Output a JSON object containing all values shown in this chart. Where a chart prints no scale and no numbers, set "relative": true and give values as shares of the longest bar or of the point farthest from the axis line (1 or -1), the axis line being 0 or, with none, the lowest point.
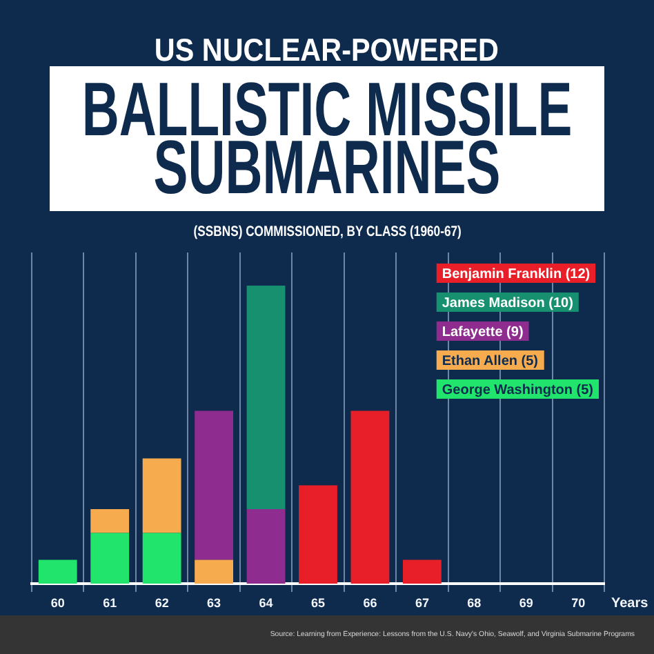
{
  "chart_data": {
    "type": "bar",
    "title": "BALLISTIC MISSILE SUBMARINES",
    "subtitle": "(SSBNS) COMMISSIONED, BY CLASS (1960-67)",
    "xlabel": "Years",
    "annotations": [
      "US NUCLEAR-POWERED",
      "Source: Learning from Experience: Lessons from the U.S. Navy's Ohio, Seawolf, and Virginia Submarine Programs"
    ],
    "categories": [
      "60",
      "61",
      "62",
      "63",
      "64",
      "65",
      "66",
      "67",
      "68",
      "69",
      "70"
    ],
    "series": [
      {
        "name": "George Washington (5)",
        "color": "#20e46c",
        "values": [
          0.08,
          0.17,
          0.17,
          null,
          null,
          null,
          null,
          null,
          null,
          null,
          null
        ]
      },
      {
        "name": "Ethan Allen (5)",
        "color": "#f7ab4f",
        "values": [
          null,
          0.08,
          0.25,
          0.08,
          null,
          null,
          null,
          null,
          null,
          null,
          null
        ]
      },
      {
        "name": "Lafayette (9)",
        "color": "#8e2c90",
        "values": [
          null,
          null,
          null,
          0.5,
          0.25,
          null,
          null,
          null,
          null,
          null,
          null
        ]
      },
      {
        "name": "James Madison (10)",
        "color": "#17906f",
        "values": [
          null,
          null,
          null,
          null,
          0.75,
          null,
          null,
          null,
          null,
          null,
          null
        ]
      },
      {
        "name": "Benjamin Franklin (12)",
        "color": "#e81e28",
        "values": [
          null,
          null,
          null,
          null,
          null,
          0.33,
          0.58,
          0.08,
          null,
          null,
          null
        ]
      }
    ],
    "stacked": true,
    "relative": true,
    "grid": "x",
    "legend": "top right"
  }
}
